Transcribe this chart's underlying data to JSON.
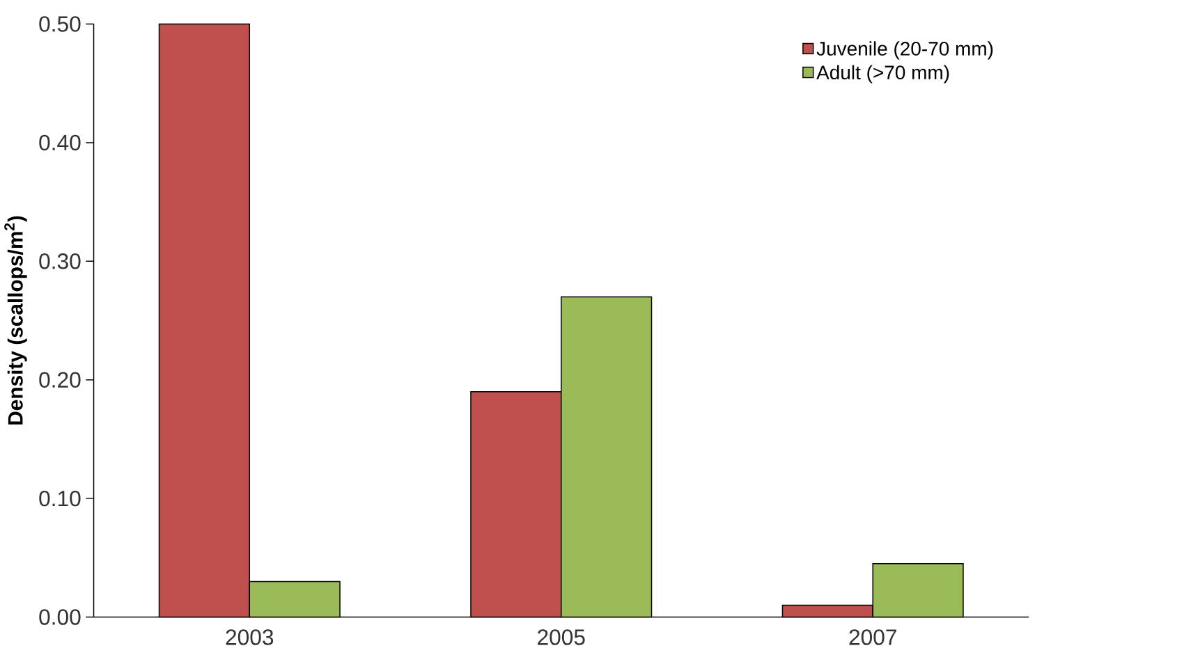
{
  "chart_data": {
    "type": "bar",
    "ylabel": "Density  (scallops/m$^{2}$)",
    "categories": [
      "2003",
      "2005",
      "2007"
    ],
    "series": [
      {
        "name": "Juvenile (20-70 mm)",
        "color": "#c0504d",
        "values": [
          0.5,
          0.19,
          0.01
        ]
      },
      {
        "name": "Adult  (>70 mm)",
        "color": "#9bbb59",
        "values": [
          0.03,
          0.27,
          0.045
        ]
      }
    ],
    "ylim": [
      0,
      0.5
    ],
    "yticks": [
      {
        "value": 0,
        "label": "0.00"
      },
      {
        "value": 0.1,
        "label": "0.10"
      },
      {
        "value": 0.2,
        "label": "0.20"
      },
      {
        "value": 0.3,
        "label": "0.30"
      },
      {
        "value": 0.4,
        "label": "0.40"
      },
      {
        "value": 0.5,
        "label": "0.50"
      }
    ],
    "grid": false,
    "legend": "top right"
  }
}
